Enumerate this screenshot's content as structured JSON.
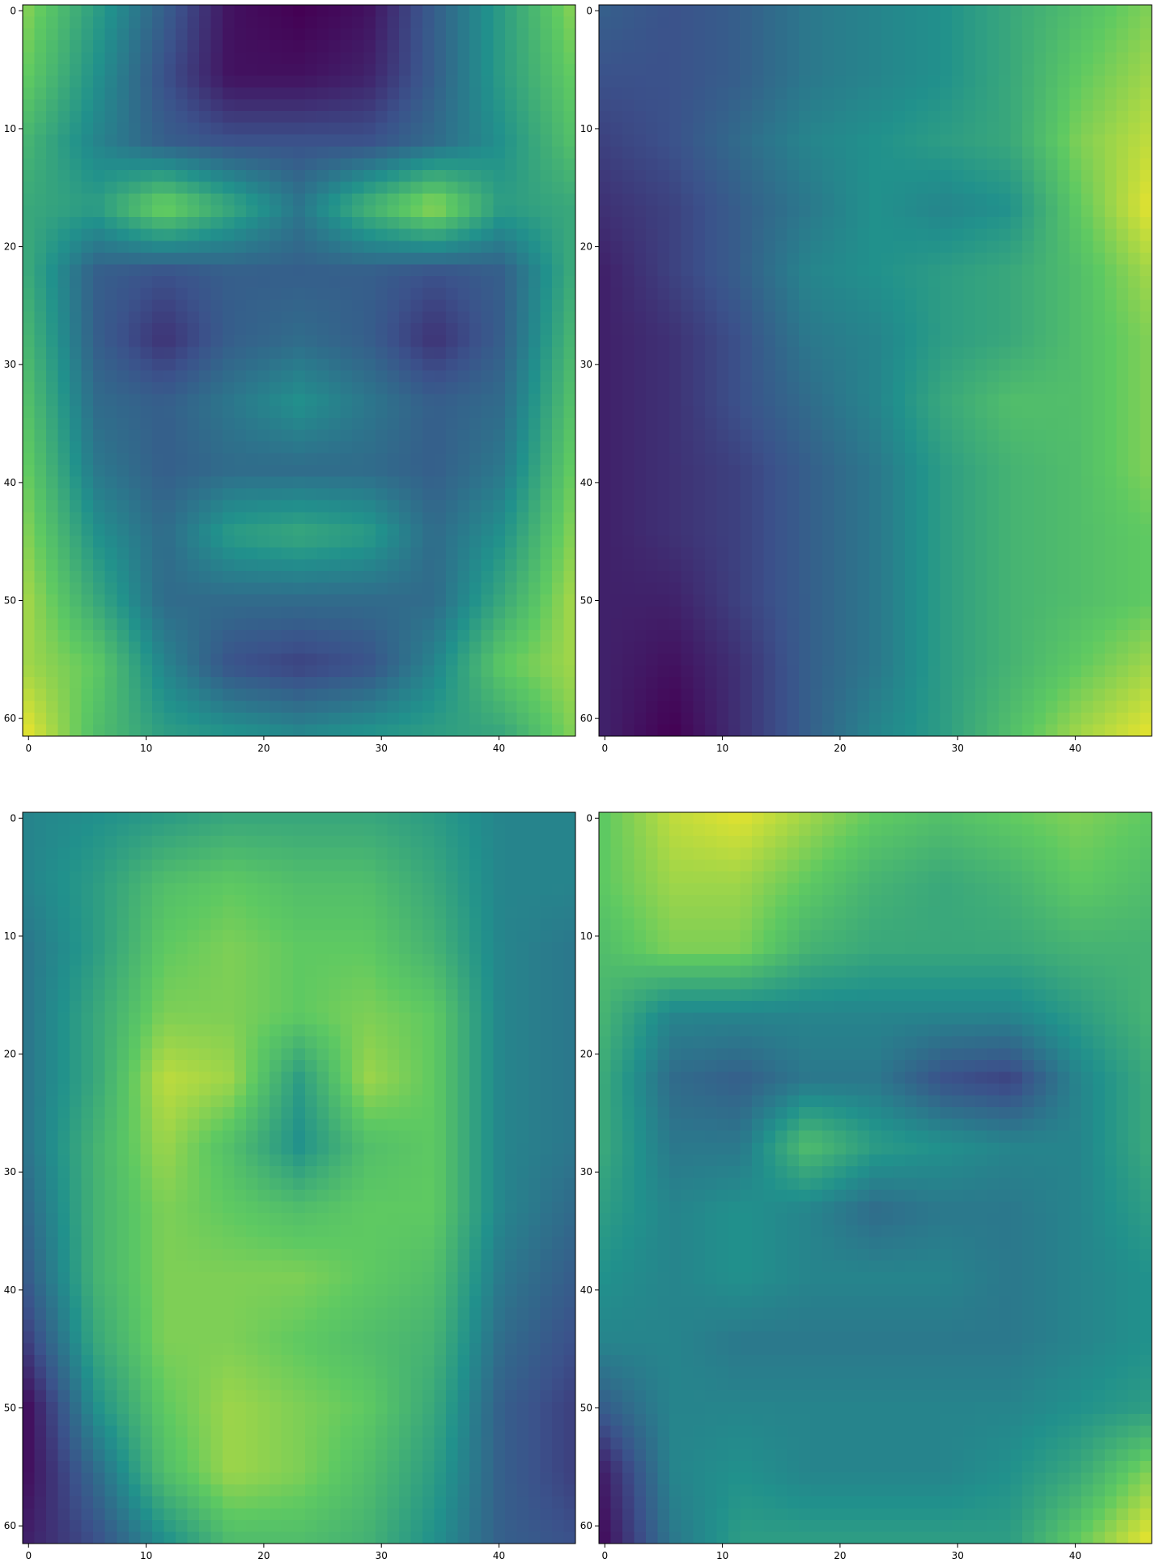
{
  "figure": {
    "background": "#ffffff",
    "colormap": [
      "#440154",
      "#3b528b",
      "#21918c",
      "#5ec962",
      "#fde725"
    ],
    "colormap_name": "viridis",
    "axis_color": "#000000",
    "grid": false,
    "legend": false
  },
  "chart_data": [
    {
      "type": "heatmap",
      "title": "",
      "xlabel": "",
      "ylabel": "",
      "image_shape": [
        62,
        47
      ],
      "xlim": [
        -0.5,
        46.5
      ],
      "ylim": [
        61.5,
        -0.5
      ],
      "xticks": [
        0,
        10,
        20,
        30,
        40
      ],
      "yticks": [
        0,
        10,
        20,
        30,
        40,
        50,
        60
      ],
      "description_grid_note": "values 0..1 on a coarse 9-col x 12-row grid, interpolated across the 47x62 image",
      "coarse_grid": [
        [
          0.8,
          0.55,
          0.3,
          0.05,
          0.0,
          0.05,
          0.3,
          0.55,
          0.8
        ],
        [
          0.75,
          0.5,
          0.25,
          0.05,
          0.05,
          0.1,
          0.3,
          0.55,
          0.75
        ],
        [
          0.65,
          0.45,
          0.3,
          0.25,
          0.25,
          0.25,
          0.35,
          0.5,
          0.7
        ],
        [
          0.6,
          0.55,
          0.8,
          0.6,
          0.4,
          0.65,
          0.85,
          0.55,
          0.6
        ],
        [
          0.6,
          0.3,
          0.25,
          0.3,
          0.3,
          0.3,
          0.25,
          0.3,
          0.6
        ],
        [
          0.65,
          0.3,
          0.15,
          0.3,
          0.35,
          0.3,
          0.15,
          0.3,
          0.65
        ],
        [
          0.7,
          0.35,
          0.3,
          0.4,
          0.5,
          0.4,
          0.3,
          0.35,
          0.7
        ],
        [
          0.75,
          0.4,
          0.3,
          0.35,
          0.35,
          0.35,
          0.3,
          0.4,
          0.75
        ],
        [
          0.8,
          0.5,
          0.35,
          0.55,
          0.6,
          0.55,
          0.35,
          0.5,
          0.8
        ],
        [
          0.85,
          0.6,
          0.35,
          0.35,
          0.35,
          0.35,
          0.35,
          0.6,
          0.85
        ],
        [
          0.85,
          0.75,
          0.45,
          0.25,
          0.2,
          0.25,
          0.45,
          0.75,
          0.85
        ],
        [
          0.95,
          0.7,
          0.55,
          0.5,
          0.45,
          0.5,
          0.55,
          0.6,
          0.8
        ]
      ]
    },
    {
      "type": "heatmap",
      "title": "",
      "xlabel": "",
      "ylabel": "",
      "image_shape": [
        62,
        47
      ],
      "xlim": [
        -0.5,
        46.5
      ],
      "ylim": [
        61.5,
        -0.5
      ],
      "xticks": [
        0,
        10,
        20,
        30,
        40
      ],
      "yticks": [
        0,
        10,
        20,
        30,
        40,
        50,
        60
      ],
      "coarse_grid": [
        [
          0.3,
          0.25,
          0.3,
          0.4,
          0.45,
          0.5,
          0.6,
          0.7,
          0.8
        ],
        [
          0.25,
          0.25,
          0.3,
          0.4,
          0.45,
          0.5,
          0.6,
          0.75,
          0.85
        ],
        [
          0.2,
          0.25,
          0.35,
          0.45,
          0.5,
          0.55,
          0.6,
          0.8,
          0.9
        ],
        [
          0.15,
          0.2,
          0.3,
          0.4,
          0.5,
          0.45,
          0.5,
          0.75,
          0.95
        ],
        [
          0.1,
          0.2,
          0.3,
          0.45,
          0.5,
          0.55,
          0.6,
          0.7,
          0.85
        ],
        [
          0.1,
          0.15,
          0.25,
          0.4,
          0.45,
          0.55,
          0.6,
          0.7,
          0.8
        ],
        [
          0.1,
          0.15,
          0.25,
          0.35,
          0.45,
          0.6,
          0.7,
          0.7,
          0.8
        ],
        [
          0.1,
          0.15,
          0.2,
          0.3,
          0.4,
          0.55,
          0.65,
          0.7,
          0.8
        ],
        [
          0.1,
          0.15,
          0.2,
          0.3,
          0.4,
          0.55,
          0.65,
          0.7,
          0.75
        ],
        [
          0.1,
          0.1,
          0.2,
          0.3,
          0.4,
          0.55,
          0.65,
          0.7,
          0.75
        ],
        [
          0.1,
          0.05,
          0.15,
          0.3,
          0.4,
          0.55,
          0.65,
          0.75,
          0.85
        ],
        [
          0.1,
          0.0,
          0.15,
          0.3,
          0.45,
          0.55,
          0.7,
          0.85,
          0.95
        ]
      ]
    },
    {
      "type": "heatmap",
      "title": "",
      "xlabel": "",
      "ylabel": "",
      "image_shape": [
        62,
        47
      ],
      "xlim": [
        -0.5,
        46.5
      ],
      "ylim": [
        61.5,
        -0.5
      ],
      "xticks": [
        0,
        10,
        20,
        30,
        40
      ],
      "yticks": [
        0,
        10,
        20,
        30,
        40,
        50,
        60
      ],
      "coarse_grid": [
        [
          0.45,
          0.5,
          0.55,
          0.6,
          0.6,
          0.6,
          0.55,
          0.45,
          0.45
        ],
        [
          0.45,
          0.55,
          0.7,
          0.75,
          0.7,
          0.7,
          0.6,
          0.45,
          0.45
        ],
        [
          0.4,
          0.55,
          0.75,
          0.8,
          0.75,
          0.75,
          0.65,
          0.45,
          0.4
        ],
        [
          0.4,
          0.6,
          0.8,
          0.8,
          0.75,
          0.8,
          0.75,
          0.45,
          0.4
        ],
        [
          0.4,
          0.6,
          0.9,
          0.85,
          0.55,
          0.85,
          0.75,
          0.45,
          0.4
        ],
        [
          0.4,
          0.65,
          0.85,
          0.7,
          0.5,
          0.7,
          0.75,
          0.45,
          0.4
        ],
        [
          0.35,
          0.65,
          0.8,
          0.75,
          0.7,
          0.75,
          0.75,
          0.45,
          0.35
        ],
        [
          0.3,
          0.65,
          0.8,
          0.8,
          0.8,
          0.75,
          0.7,
          0.4,
          0.3
        ],
        [
          0.2,
          0.6,
          0.8,
          0.8,
          0.75,
          0.7,
          0.65,
          0.35,
          0.25
        ],
        [
          0.05,
          0.5,
          0.75,
          0.85,
          0.8,
          0.75,
          0.6,
          0.3,
          0.2
        ],
        [
          0.05,
          0.35,
          0.7,
          0.85,
          0.8,
          0.7,
          0.55,
          0.3,
          0.2
        ],
        [
          0.1,
          0.25,
          0.5,
          0.7,
          0.7,
          0.65,
          0.5,
          0.3,
          0.25
        ]
      ]
    },
    {
      "type": "heatmap",
      "title": "",
      "xlabel": "",
      "ylabel": "",
      "image_shape": [
        62,
        47
      ],
      "xlim": [
        -0.5,
        46.5
      ],
      "ylim": [
        61.5,
        -0.5
      ],
      "xticks": [
        0,
        10,
        20,
        30,
        40
      ],
      "yticks": [
        0,
        10,
        20,
        30,
        40,
        50,
        60
      ],
      "coarse_grid": [
        [
          0.75,
          0.9,
          0.95,
          0.85,
          0.75,
          0.7,
          0.75,
          0.8,
          0.75
        ],
        [
          0.75,
          0.85,
          0.85,
          0.75,
          0.65,
          0.6,
          0.65,
          0.75,
          0.7
        ],
        [
          0.7,
          0.8,
          0.8,
          0.65,
          0.6,
          0.6,
          0.6,
          0.65,
          0.65
        ],
        [
          0.65,
          0.45,
          0.45,
          0.45,
          0.45,
          0.45,
          0.45,
          0.55,
          0.65
        ],
        [
          0.6,
          0.35,
          0.3,
          0.4,
          0.4,
          0.25,
          0.2,
          0.45,
          0.6
        ],
        [
          0.6,
          0.4,
          0.4,
          0.7,
          0.55,
          0.5,
          0.45,
          0.45,
          0.6
        ],
        [
          0.55,
          0.45,
          0.5,
          0.45,
          0.35,
          0.4,
          0.4,
          0.45,
          0.55
        ],
        [
          0.5,
          0.45,
          0.5,
          0.45,
          0.45,
          0.45,
          0.4,
          0.45,
          0.5
        ],
        [
          0.45,
          0.45,
          0.4,
          0.4,
          0.4,
          0.4,
          0.4,
          0.45,
          0.5
        ],
        [
          0.3,
          0.45,
          0.45,
          0.45,
          0.45,
          0.45,
          0.45,
          0.5,
          0.55
        ],
        [
          0.1,
          0.45,
          0.5,
          0.45,
          0.45,
          0.45,
          0.5,
          0.6,
          0.8
        ],
        [
          0.05,
          0.4,
          0.55,
          0.55,
          0.55,
          0.55,
          0.55,
          0.75,
          0.95
        ]
      ]
    }
  ]
}
